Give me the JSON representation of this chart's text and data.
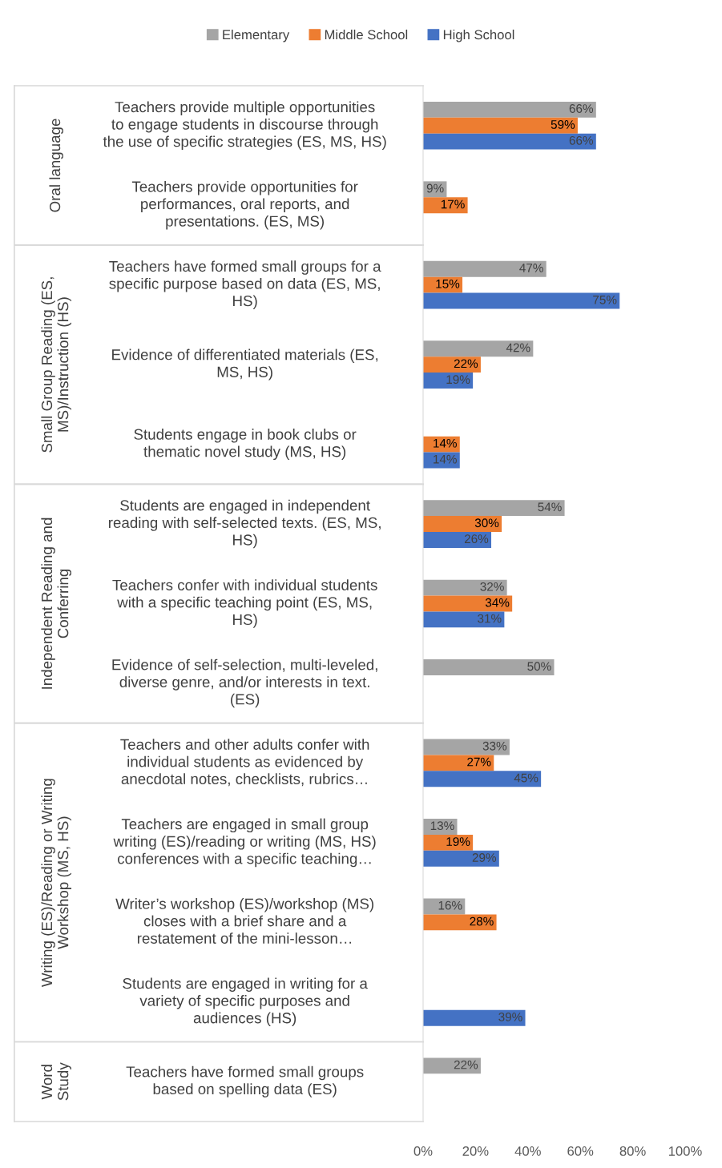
{
  "chart_data": {
    "type": "bar",
    "orientation": "horizontal",
    "categories": [
      "Teachers provide multiple opportunities\nto engage students in discourse through\nthe use of specific strategies (ES, MS, HS)",
      "Teachers provide opportunities for\nperformances, oral reports, and\npresentations. (ES, MS)",
      "Teachers have formed small groups for a\nspecific purpose based on data (ES, MS,\nHS)",
      "Evidence of differentiated materials (ES,\nMS, HS)",
      "Students engage in book clubs or\nthematic novel study (MS, HS)",
      "Students are engaged in independent\nreading with self-selected texts. (ES, MS,\nHS)",
      "Teachers confer with individual students\nwith a specific teaching point (ES, MS,\nHS)",
      "Evidence of self-selection, multi-leveled,\ndiverse genre, and/or interests in text.\n(ES)",
      "Teachers and other adults confer with\nindividual students as evidenced by\nanecdotal notes, checklists, rubrics…",
      "Teachers are engaged in small group\nwriting (ES)/reading or writing (MS, HS)\nconferences with a specific teaching…",
      "Writer’s workshop (ES)/workshop (MS)\ncloses with a brief share and a\nrestatement of the mini-lesson…",
      "Students are engaged in writing for a\nvariety of specific purposes and\naudiences (HS)",
      "Teachers have formed small groups\nbased on spelling data (ES)"
    ],
    "series": [
      {
        "name": "Elementary",
        "color": "#a5a5a5",
        "values": [
          66,
          9,
          47,
          42,
          null,
          54,
          32,
          50,
          33,
          13,
          16,
          null,
          22
        ],
        "value_labels": [
          "66%",
          "9%",
          "47%",
          "42%",
          null,
          "54%",
          "32%",
          "50%",
          "33%",
          "13%",
          "16%",
          null,
          "22%"
        ]
      },
      {
        "name": "Middle School",
        "color": "#ed7d31",
        "values": [
          59,
          17,
          15,
          22,
          14,
          30,
          34,
          null,
          27,
          19,
          28,
          null,
          null
        ],
        "value_labels": [
          "59%",
          "17%",
          "15%",
          "22%",
          "14%",
          "30%",
          "34%",
          null,
          "27%",
          "19%",
          "28%",
          null,
          null
        ]
      },
      {
        "name": "High School",
        "color": "#4472c4",
        "values": [
          66,
          null,
          75,
          19,
          14,
          26,
          31,
          null,
          45,
          29,
          null,
          39,
          null
        ],
        "value_labels": [
          "66%",
          null,
          "75%",
          "19%",
          "14%",
          "26%",
          "31%",
          null,
          "45%",
          "29%",
          null,
          "39%",
          null
        ]
      }
    ],
    "xlim": [
      0,
      100
    ],
    "xticks": [
      {
        "value": 0,
        "label": "0%"
      },
      {
        "value": 20,
        "label": "20%"
      },
      {
        "value": 40,
        "label": "40%"
      },
      {
        "value": 60,
        "label": "60%"
      },
      {
        "value": 80,
        "label": "80%"
      },
      {
        "value": 100,
        "label": "100%"
      }
    ],
    "annotations": [
      "Oral language",
      "Small Group Reading (ES,\nMS)/Instruction (HS)",
      "Independent Reading and\nConferring",
      "Writing (ES)/Reading or Writing\nWorkshop (MS, HS)",
      "Word\nStudy"
    ],
    "legend": "top",
    "grid": false
  }
}
